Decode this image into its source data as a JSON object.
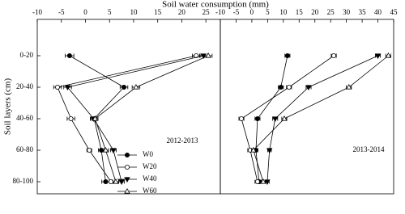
{
  "chart_data": [
    {
      "type": "line",
      "orientation": "horizontal",
      "xlabel": "Soil water consumption (mm)",
      "ylabel": "Soil layers (cm)",
      "annotation": "2012-2013",
      "categories": [
        "0-20",
        "20-40",
        "40-60",
        "60-80",
        "80-100"
      ],
      "xlim": [
        -10,
        28
      ],
      "xticks": [
        -10,
        -5,
        0,
        5,
        10,
        15,
        20,
        25
      ],
      "legend": "lower right",
      "series": [
        {
          "name": "W0",
          "color": "#000000",
          "marker": "circle",
          "filled": true,
          "values": [
            -3.3,
            8,
            1.8,
            3.3,
            4.2
          ],
          "errors": [
            0.9,
            0.8,
            0.8,
            0.6,
            0.8
          ]
        },
        {
          "name": "W20",
          "color": "#000000",
          "marker": "circle",
          "filled": false,
          "values": [
            23,
            -5.8,
            -3,
            0.8,
            5.3
          ],
          "errors": [
            0.8,
            0.8,
            0.8,
            0.5,
            0.8
          ]
        },
        {
          "name": "W40",
          "color": "#000000",
          "marker": "triangle-down",
          "filled": true,
          "values": [
            24.5,
            -3.7,
            1.7,
            5.8,
            7.5
          ],
          "errors": [
            0.8,
            0.8,
            0.6,
            0.6,
            0.6
          ]
        },
        {
          "name": "W60",
          "color": "#000000",
          "marker": "triangle-up",
          "filled": false,
          "values": [
            25.5,
            10.5,
            2,
            4.2,
            6.3
          ],
          "errors": [
            0.8,
            0.8,
            0.6,
            0.6,
            0.6
          ]
        }
      ]
    },
    {
      "type": "line",
      "orientation": "horizontal",
      "annotation": "2013-2014",
      "xlim": [
        -10,
        45
      ],
      "xticks": [
        -10,
        -5,
        0,
        5,
        10,
        15,
        20,
        25,
        30,
        35,
        40,
        45
      ],
      "series": [
        {
          "color": "#000000",
          "marker": "circle",
          "filled": true,
          "values": [
            11.3,
            9.2,
            1.8,
            1.3,
            2.3
          ],
          "errors": [
            0.8,
            0.8,
            0.8,
            0.6,
            0.8
          ]
        },
        {
          "color": "#000000",
          "marker": "circle",
          "filled": false,
          "values": [
            26,
            11.8,
            -3.3,
            -0.5,
            1.8
          ],
          "errors": [
            0.8,
            0.8,
            0.8,
            0.8,
            0.8
          ]
        },
        {
          "color": "#000000",
          "marker": "triangle-down",
          "filled": true,
          "values": [
            40,
            18,
            7.4,
            5.6,
            4.9
          ],
          "errors": [
            0.8,
            0.8,
            0.8,
            0.6,
            0.6
          ]
        },
        {
          "color": "#000000",
          "marker": "triangle-up",
          "filled": false,
          "values": [
            43.3,
            30.8,
            10.3,
            0.5,
            3.6
          ],
          "errors": [
            0.8,
            0.8,
            0.8,
            0.6,
            0.6
          ]
        }
      ]
    }
  ]
}
